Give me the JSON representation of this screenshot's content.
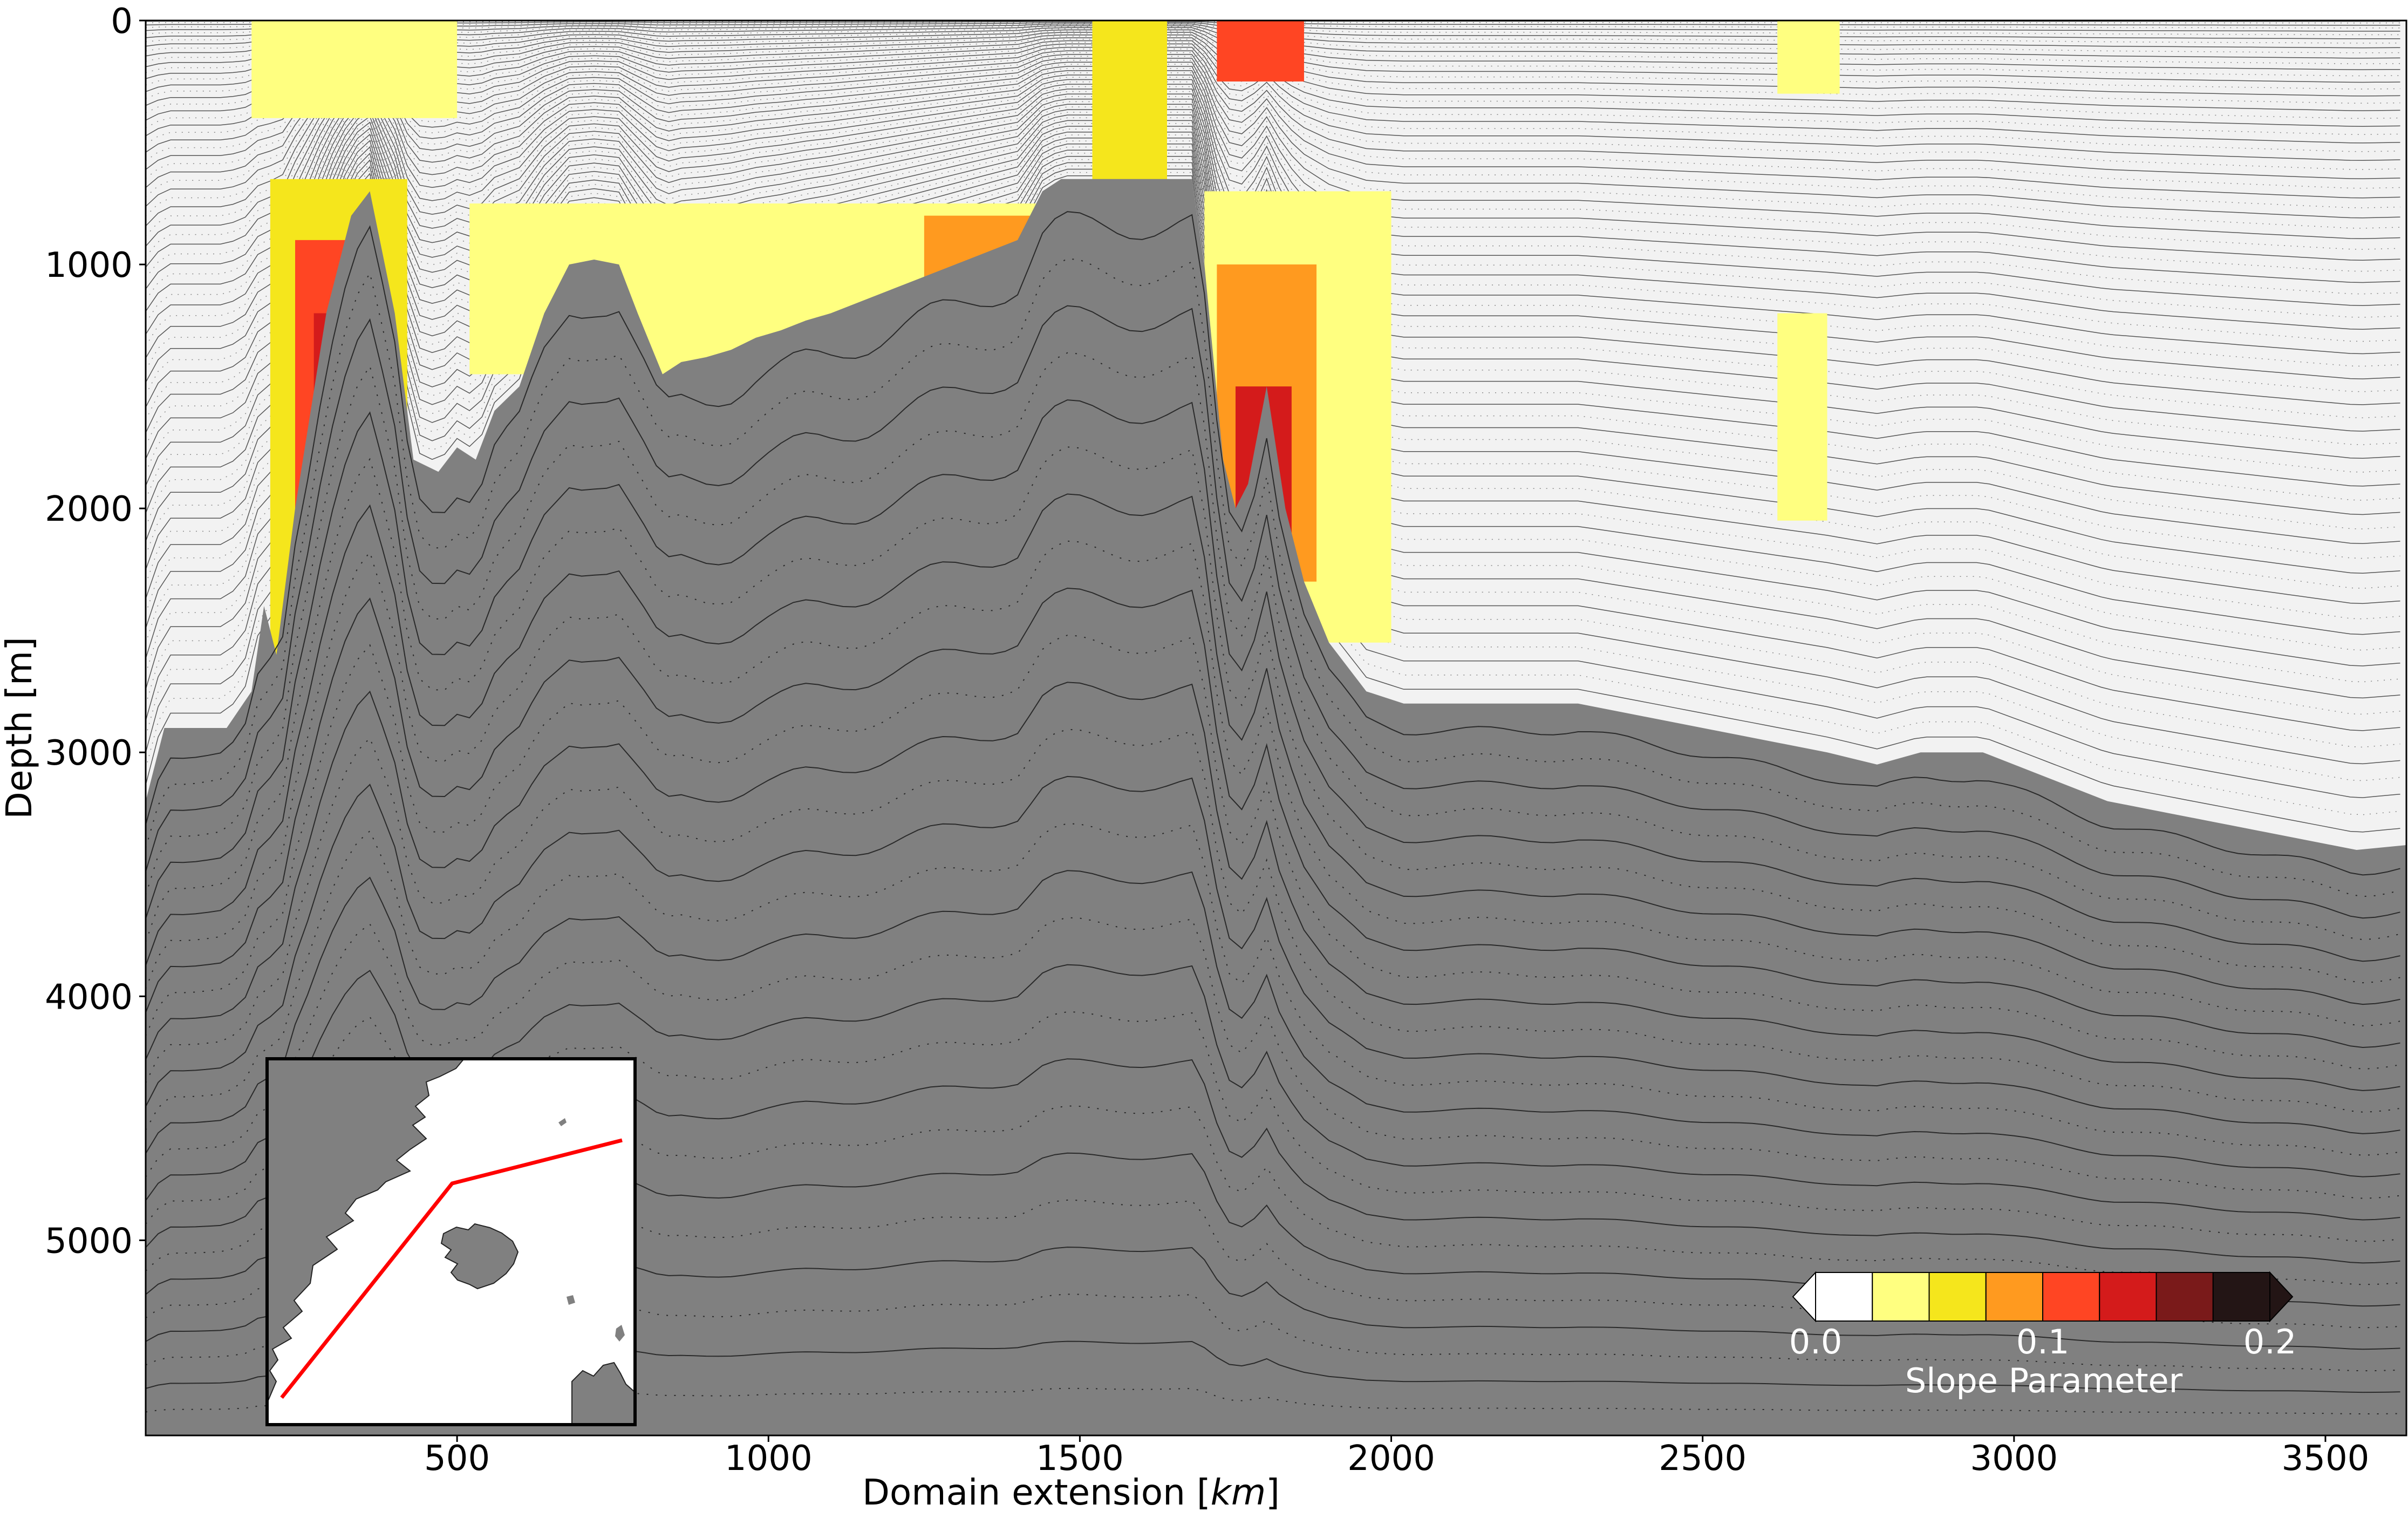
{
  "chart_data": {
    "type": "heatmap",
    "title": "",
    "xlabel_main": "Domain extension [",
    "xlabel_unit": "km",
    "xlabel_close": "]",
    "ylabel": "Depth [m]",
    "xlim": [
      0,
      3630
    ],
    "ylim": [
      5800,
      0
    ],
    "y_inverted": true,
    "grid": false,
    "xticks": [
      500,
      1000,
      1500,
      2000,
      2500,
      3000,
      3500
    ],
    "xtick_labels": [
      "500",
      "1000",
      "1500",
      "2000",
      "2500",
      "3000",
      "3500"
    ],
    "yticks": [
      0,
      1000,
      2000,
      3000,
      4000,
      5000
    ],
    "ytick_labels": [
      "0",
      "1000",
      "2000",
      "3000",
      "4000",
      "5000"
    ],
    "bathymetry": {
      "x": [
        0,
        30,
        130,
        170,
        190,
        210,
        240,
        290,
        330,
        360,
        400,
        430,
        470,
        500,
        530,
        560,
        600,
        640,
        680,
        720,
        760,
        790,
        830,
        860,
        900,
        940,
        980,
        1020,
        1060,
        1100,
        1150,
        1200,
        1250,
        1300,
        1350,
        1400,
        1440,
        1470,
        1500,
        1540,
        1580,
        1620,
        1650,
        1680,
        1700,
        1730,
        1750,
        1770,
        1800,
        1830,
        1860,
        1900,
        1960,
        2020,
        2100,
        2200,
        2300,
        2400,
        2500,
        2600,
        2700,
        2780,
        2850,
        2950,
        3050,
        3150,
        3250,
        3350,
        3450,
        3550,
        3630
      ],
      "depth": [
        3200,
        2900,
        2900,
        2750,
        2400,
        2600,
        2000,
        1200,
        800,
        700,
        1200,
        1800,
        1850,
        1750,
        1800,
        1600,
        1500,
        1200,
        1000,
        980,
        1000,
        1200,
        1450,
        1400,
        1380,
        1350,
        1300,
        1270,
        1230,
        1200,
        1150,
        1100,
        1050,
        1000,
        950,
        900,
        700,
        650,
        650,
        650,
        650,
        650,
        650,
        650,
        1000,
        1800,
        2000,
        1900,
        1500,
        2000,
        2300,
        2550,
        2750,
        2800,
        2800,
        2800,
        2800,
        2850,
        2900,
        2950,
        3000,
        3050,
        3000,
        3000,
        3100,
        3200,
        3250,
        3300,
        3350,
        3400,
        3380
      ],
      "fill_color": "#808080"
    },
    "slope_parameter_regions": [
      {
        "x": [
          200,
          420
        ],
        "depth": [
          650,
          2650
        ],
        "level": 0.05
      },
      {
        "x": [
          240,
          330
        ],
        "depth": [
          900,
          2100
        ],
        "level": 0.1
      },
      {
        "x": [
          270,
          310
        ],
        "depth": [
          1200,
          1900
        ],
        "level": 0.125
      },
      {
        "x": [
          170,
          500
        ],
        "depth": [
          0,
          400
        ],
        "level": 0.025
      },
      {
        "x": [
          520,
          1440
        ],
        "depth": [
          750,
          1450
        ],
        "level": 0.025
      },
      {
        "x": [
          1250,
          1440
        ],
        "depth": [
          800,
          1250
        ],
        "level": 0.075
      },
      {
        "x": [
          1520,
          1640
        ],
        "depth": [
          0,
          700
        ],
        "level": 0.05
      },
      {
        "x": [
          1720,
          1860
        ],
        "depth": [
          0,
          250
        ],
        "level": 0.1
      },
      {
        "x": [
          1700,
          2000
        ],
        "depth": [
          700,
          2550
        ],
        "level": 0.025
      },
      {
        "x": [
          1720,
          1880
        ],
        "depth": [
          1000,
          2300
        ],
        "level": 0.075
      },
      {
        "x": [
          1750,
          1840
        ],
        "depth": [
          1500,
          2600
        ],
        "level": 0.125
      },
      {
        "x": [
          2620,
          2700
        ],
        "depth": [
          1200,
          2050
        ],
        "level": 0.025
      },
      {
        "x": [
          2620,
          2720
        ],
        "depth": [
          0,
          300
        ],
        "level": 0.025
      }
    ],
    "colorbar": {
      "label": "Slope Parameter",
      "tick_values": [
        0.0,
        0.1,
        0.2
      ],
      "tick_labels": [
        "0.0",
        "0.1",
        "0.2"
      ],
      "bounds": [
        0.0,
        0.025,
        0.05,
        0.075,
        0.1,
        0.125,
        0.15,
        0.175,
        0.2
      ],
      "colors": [
        "#ffffff",
        "#ffff80",
        "#f5e61c",
        "#ff9a1f",
        "#ff4523",
        "#d41b1b",
        "#7a1a1a",
        "#231515"
      ],
      "extend": "both"
    },
    "inset_map": {
      "land_color": "#808080",
      "section_line_color": "#ff0000"
    }
  }
}
